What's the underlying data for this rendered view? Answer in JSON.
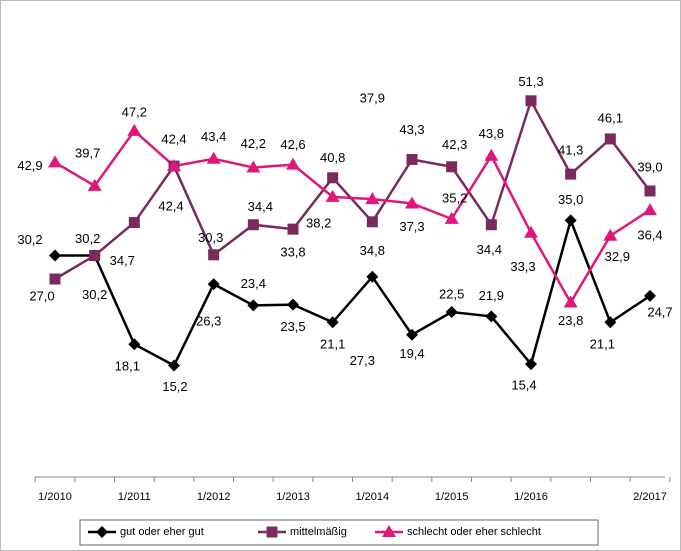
{
  "chart_data": {
    "type": "line",
    "categories": [
      "1/2010",
      null,
      "1/2011",
      null,
      "1/2012",
      null,
      "1/2013",
      null,
      "1/2014",
      null,
      "1/2015",
      null,
      "1/2016",
      null,
      null,
      "2/2017"
    ],
    "ylim": [
      0,
      60
    ],
    "legend": "bottom",
    "series": [
      {
        "name": "gut oder eher gut",
        "color": "#000000",
        "marker": "diamond",
        "values": [
          30.2,
          30.2,
          18.1,
          15.2,
          26.3,
          23.4,
          23.5,
          21.1,
          27.3,
          19.4,
          22.5,
          21.9,
          15.4,
          35.0,
          21.1,
          24.7
        ],
        "value_labels": [
          "30,2",
          "30,2",
          "18,1",
          "15,2",
          "26,3",
          "23,4",
          "23,5",
          "21,1",
          "27,3",
          "19,4",
          "22,5",
          "21,9",
          "15,4",
          "35,0",
          "21,1",
          "24,7"
        ]
      },
      {
        "name": "mittelmäßig",
        "color": "#7b2a5e",
        "marker": "square",
        "values": [
          27.0,
          30.2,
          34.7,
          42.4,
          30.3,
          34.4,
          33.8,
          40.8,
          34.8,
          43.3,
          42.3,
          34.4,
          51.3,
          41.3,
          46.1,
          39.0
        ],
        "value_labels": [
          "27,0",
          "30,2",
          "34,7",
          "42,4",
          "30,3",
          "34,4",
          "33,8",
          "40,8",
          "34,8",
          "43,3",
          "42,3",
          "34,4",
          "51,3",
          "41,3",
          "46,1",
          "39,0"
        ]
      },
      {
        "name": "schlecht oder eher schlecht",
        "color": "#e0177a",
        "marker": "triangle",
        "values": [
          42.9,
          39.7,
          47.2,
          42.4,
          43.4,
          42.2,
          42.6,
          38.2,
          37.9,
          37.3,
          35.2,
          43.8,
          33.3,
          23.8,
          32.9,
          36.4
        ],
        "value_labels": [
          "42,9",
          "39,7",
          "47,2",
          "42,4",
          "43,4",
          "42,2",
          "42,6",
          "38,2",
          "37,9",
          "37,3",
          "35,2",
          "43,8",
          "33,3",
          "23,8",
          "32,9",
          "36,4"
        ]
      }
    ]
  }
}
